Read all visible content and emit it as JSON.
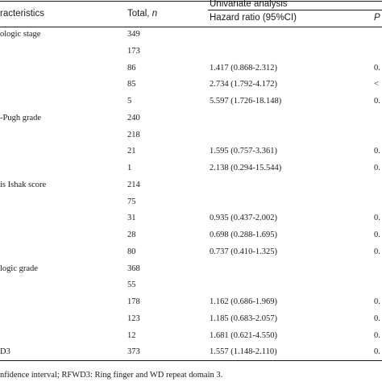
{
  "header": {
    "characteristics": "racteristics",
    "total": "Total, ",
    "total_n": "n",
    "univariate": "Univariate analysis",
    "hazard_ratio": "Hazard ratio (95%CI)",
    "p": "P"
  },
  "rows": [
    {
      "label": "ologic stage",
      "total": "349",
      "hr": "",
      "p": ""
    },
    {
      "label": "",
      "total": "173",
      "hr": "",
      "p": ""
    },
    {
      "label": "",
      "total": "86",
      "hr": "1.417 (0.868-2.312)",
      "p": "0."
    },
    {
      "label": "",
      "total": "85",
      "hr": "2.734 (1.792-4.172)",
      "p": "<"
    },
    {
      "label": "",
      "total": "5",
      "hr": "5.597 (1.726-18.148)",
      "p": "0."
    },
    {
      "label": "-Pugh grade",
      "total": "240",
      "hr": "",
      "p": ""
    },
    {
      "label": "",
      "total": "218",
      "hr": "",
      "p": ""
    },
    {
      "label": "",
      "total": "21",
      "hr": "1.595 (0.757-3.361)",
      "p": "0."
    },
    {
      "label": "",
      "total": "1",
      "hr": "2.138 (0.294-15.544)",
      "p": "0."
    },
    {
      "label": "is Ishak score",
      "total": "214",
      "hr": "",
      "p": ""
    },
    {
      "label": "",
      "total": "75",
      "hr": "",
      "p": ""
    },
    {
      "label": "",
      "total": "31",
      "hr": "0.935 (0.437-2.002)",
      "p": "0."
    },
    {
      "label": "",
      "total": "28",
      "hr": "0.698 (0.288-1.695)",
      "p": "0."
    },
    {
      "label": "",
      "total": "80",
      "hr": "0.737 (0.410-1.325)",
      "p": "0."
    },
    {
      "label": "logic grade",
      "total": "368",
      "hr": "",
      "p": ""
    },
    {
      "label": "",
      "total": "55",
      "hr": "",
      "p": ""
    },
    {
      "label": "",
      "total": "178",
      "hr": "1.162 (0.686-1.969)",
      "p": "0."
    },
    {
      "label": "",
      "total": "123",
      "hr": "1.185 (0.683-2.057)",
      "p": "0."
    },
    {
      "label": "",
      "total": "12",
      "hr": "1.681 (0.621-4.550)",
      "p": "0."
    },
    {
      "label": "D3",
      "total": "373",
      "hr": "1.557 (1.148-2.110)",
      "p": "0."
    }
  ],
  "footnote": "nfidence interval; RFWD3: Ring finger and WD repeat domain 3."
}
